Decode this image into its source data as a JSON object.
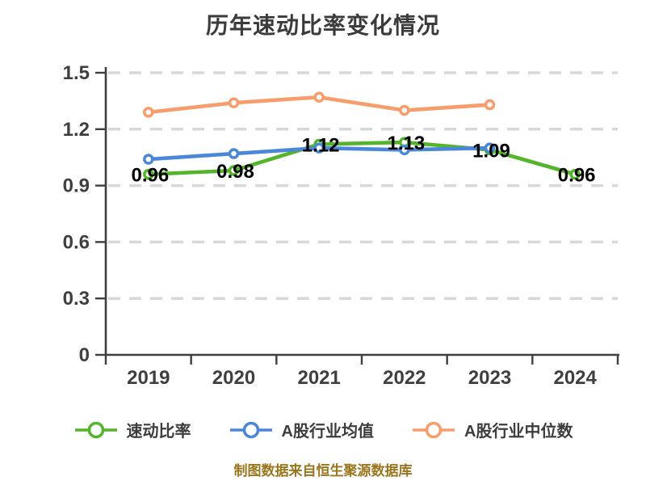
{
  "chart_data": {
    "type": "line",
    "title": "历年速动比率变化情况",
    "footer": "制图数据来自恒生聚源数据库",
    "x_categories": [
      "2019",
      "2020",
      "2021",
      "2022",
      "2023",
      "2024"
    ],
    "ylim": [
      0,
      1.5
    ],
    "yticks": [
      0,
      0.3,
      0.6,
      0.9,
      1.2,
      1.5
    ],
    "ytick_labels": [
      "0",
      "0.3",
      "0.6",
      "0.9",
      "1.2",
      "1.5"
    ],
    "grid": "horizontal dashed gridlines",
    "legend_position": "bottom",
    "series": [
      {
        "name": "速动比率",
        "color": "#54b42c",
        "values": [
          0.96,
          0.98,
          1.12,
          1.13,
          1.09,
          0.96
        ],
        "labels": [
          "0.96",
          "0.98",
          "1.12",
          "1.13",
          "1.09",
          "0.96"
        ]
      },
      {
        "name": "A股行业均值",
        "color": "#4a87d9",
        "values": [
          1.04,
          1.07,
          1.1,
          1.09,
          1.1
        ]
      },
      {
        "name": "A股行业中位数",
        "color": "#f89c6b",
        "values": [
          1.29,
          1.34,
          1.37,
          1.3,
          1.33
        ]
      }
    ]
  },
  "colors": {
    "axis": "#3f3f3f",
    "grid": "#d8d8d8",
    "title_text": "#3b3b3b",
    "tick_text": "#3f3f3f",
    "data_label": "#000000",
    "marker_fill": "#ffffff",
    "footer_text": "#9a751d"
  }
}
